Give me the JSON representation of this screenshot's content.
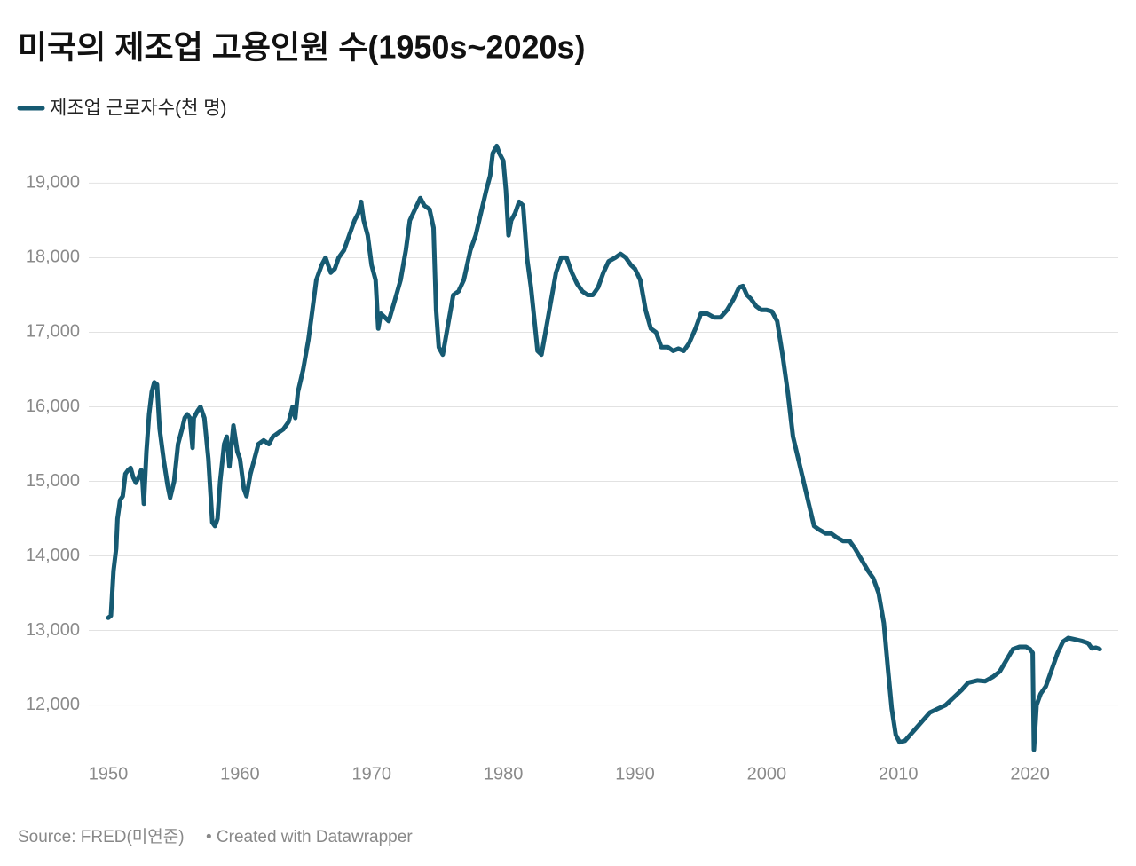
{
  "chart_data": {
    "type": "line",
    "title": "미국의 제조업 고용인원 수(1950s~2020s)",
    "source": "Source: FRED(미연준)",
    "credit": "• Created with Datawrapper",
    "x": [
      1950.0,
      1950.2,
      1950.4,
      1950.6,
      1950.7,
      1950.9,
      1951.1,
      1951.3,
      1951.5,
      1951.7,
      1951.9,
      1952.1,
      1952.3,
      1952.5,
      1952.6,
      1952.7,
      1952.9,
      1953.1,
      1953.3,
      1953.5,
      1953.7,
      1953.9,
      1954.2,
      1954.5,
      1954.7,
      1955.0,
      1955.3,
      1955.6,
      1955.8,
      1956.0,
      1956.2,
      1956.4,
      1956.5,
      1956.8,
      1957.0,
      1957.3,
      1957.6,
      1957.9,
      1958.1,
      1958.3,
      1958.5,
      1958.8,
      1959.0,
      1959.2,
      1959.5,
      1959.8,
      1960.0,
      1960.3,
      1960.5,
      1960.8,
      1961.1,
      1961.4,
      1961.8,
      1962.2,
      1962.5,
      1962.9,
      1963.3,
      1963.7,
      1964.0,
      1964.2,
      1964.4,
      1964.8,
      1965.2,
      1965.5,
      1965.8,
      1966.2,
      1966.5,
      1966.7,
      1966.9,
      1967.2,
      1967.5,
      1967.9,
      1968.3,
      1968.7,
      1969.0,
      1969.2,
      1969.4,
      1969.7,
      1970.0,
      1970.3,
      1970.5,
      1970.7,
      1971.0,
      1971.3,
      1971.8,
      1972.2,
      1972.6,
      1972.9,
      1973.3,
      1973.7,
      1974.0,
      1974.4,
      1974.7,
      1974.9,
      1975.1,
      1975.4,
      1975.8,
      1976.2,
      1976.6,
      1977.0,
      1977.5,
      1977.9,
      1978.3,
      1978.7,
      1979.0,
      1979.2,
      1979.5,
      1979.7,
      1980.0,
      1980.2,
      1980.4,
      1980.6,
      1980.9,
      1981.2,
      1981.5,
      1981.8,
      1982.1,
      1982.4,
      1982.6,
      1982.9,
      1983.2,
      1983.6,
      1984.0,
      1984.4,
      1984.8,
      1985.2,
      1985.6,
      1986.0,
      1986.4,
      1986.8,
      1987.2,
      1987.6,
      1988.0,
      1988.5,
      1988.9,
      1989.3,
      1989.7,
      1990.0,
      1990.4,
      1990.8,
      1991.2,
      1991.6,
      1992.0,
      1992.5,
      1992.9,
      1993.3,
      1993.7,
      1994.1,
      1994.6,
      1995.0,
      1995.5,
      1996.0,
      1996.5,
      1997.0,
      1997.5,
      1997.9,
      1998.2,
      1998.5,
      1998.8,
      1999.2,
      1999.6,
      2000.0,
      2000.4,
      2000.8,
      2001.2,
      2001.6,
      2002.0,
      2002.4,
      2002.8,
      2003.2,
      2003.6,
      2004.0,
      2004.5,
      2004.9,
      2005.3,
      2005.8,
      2006.3,
      2006.7,
      2007.2,
      2007.7,
      2008.1,
      2008.5,
      2008.9,
      2009.2,
      2009.5,
      2009.8,
      2010.1,
      2010.5,
      2010.9,
      2011.4,
      2011.9,
      2012.4,
      2013.0,
      2013.6,
      2014.2,
      2014.8,
      2015.3,
      2016.0,
      2016.6,
      2017.2,
      2017.7,
      2018.2,
      2018.7,
      2019.2,
      2019.7,
      2020.0,
      2020.2,
      2020.3,
      2020.5,
      2020.8,
      2021.2,
      2021.7,
      2022.1,
      2022.5,
      2022.9,
      2023.4,
      2023.9,
      2024.4,
      2024.7,
      2025.0,
      2025.3
    ],
    "series": [
      {
        "name": "제조업 근로자수(천 명)",
        "color": "#165a72",
        "values": [
          13170,
          13200,
          13800,
          14100,
          14500,
          14750,
          14800,
          15100,
          15150,
          15180,
          15050,
          14980,
          15050,
          15150,
          15000,
          14700,
          15400,
          15900,
          16200,
          16330,
          16300,
          15700,
          15300,
          14950,
          14780,
          15000,
          15500,
          15700,
          15850,
          15900,
          15850,
          15450,
          15850,
          15950,
          16000,
          15850,
          15300,
          14450,
          14400,
          14500,
          15000,
          15500,
          15600,
          15200,
          15750,
          15400,
          15300,
          14900,
          14800,
          15100,
          15300,
          15500,
          15550,
          15500,
          15600,
          15650,
          15700,
          15800,
          16000,
          15850,
          16200,
          16500,
          16900,
          17300,
          17700,
          17900,
          18000,
          17900,
          17800,
          17850,
          18000,
          18100,
          18300,
          18500,
          18600,
          18750,
          18500,
          18300,
          17900,
          17700,
          17050,
          17250,
          17200,
          17150,
          17450,
          17700,
          18100,
          18500,
          18650,
          18800,
          18700,
          18650,
          18400,
          17300,
          16800,
          16700,
          17100,
          17500,
          17550,
          17700,
          18100,
          18300,
          18600,
          18900,
          19100,
          19400,
          19500,
          19400,
          19300,
          18900,
          18300,
          18500,
          18600,
          18750,
          18700,
          18000,
          17600,
          17100,
          16750,
          16700,
          17000,
          17400,
          17800,
          18000,
          18000,
          17800,
          17650,
          17550,
          17500,
          17500,
          17600,
          17800,
          17950,
          18000,
          18050,
          18000,
          17900,
          17850,
          17700,
          17300,
          17050,
          17000,
          16800,
          16800,
          16750,
          16780,
          16750,
          16850,
          17050,
          17250,
          17250,
          17200,
          17200,
          17300,
          17450,
          17600,
          17620,
          17500,
          17450,
          17350,
          17300,
          17300,
          17280,
          17150,
          16700,
          16200,
          15600,
          15300,
          15000,
          14700,
          14400,
          14350,
          14300,
          14300,
          14250,
          14200,
          14200,
          14100,
          13950,
          13800,
          13700,
          13500,
          13100,
          12500,
          11950,
          11600,
          11500,
          11520,
          11600,
          11700,
          11800,
          11900,
          11950,
          12000,
          12100,
          12200,
          12300,
          12330,
          12320,
          12380,
          12450,
          12600,
          12750,
          12780,
          12780,
          12750,
          12700,
          11400,
          12000,
          12150,
          12250,
          12500,
          12700,
          12850,
          12900,
          12880,
          12860,
          12830,
          12760,
          12770,
          12750
        ]
      }
    ],
    "xlim": [
      1950,
      2026.7
    ],
    "xticks": [
      1950,
      1960,
      1970,
      1980,
      1990,
      2000,
      2010,
      2020
    ],
    "ylim": [
      11400,
      19600
    ],
    "yticks": [
      {
        "value": 12000,
        "label": "12,000"
      },
      {
        "value": 13000,
        "label": "13,000"
      },
      {
        "value": 14000,
        "label": "14,000"
      },
      {
        "value": 15000,
        "label": "15,000"
      },
      {
        "value": 16000,
        "label": "16,000"
      },
      {
        "value": 17000,
        "label": "17,000"
      },
      {
        "value": 18000,
        "label": "18,000"
      },
      {
        "value": 19000,
        "label": "19,000"
      }
    ],
    "grid": true
  }
}
